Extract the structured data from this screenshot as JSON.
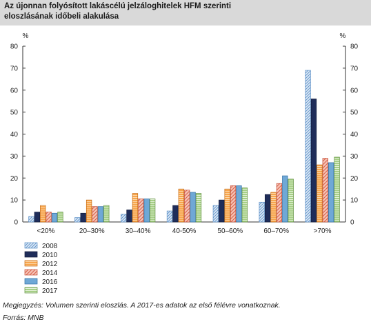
{
  "title": "Az újonnan folyósított lakáscélú jelzáloghitelek HFM szerinti eloszlásának időbeli alakulása",
  "notes": {
    "note": "Megjegyzés: Volumen szerinti eloszlás. A 2017-es adatok az első félévre vonatkoznak.",
    "source": "Forrás: MNB"
  },
  "chart_data": {
    "type": "bar",
    "title": "Az újonnan folyósított lakáscélú jelzáloghitelek HFM szerinti eloszlásának időbeli alakulása",
    "xlabel": "",
    "ylabel": "%",
    "ylabel_right": "%",
    "ylim": [
      0,
      80
    ],
    "yticks": [
      0,
      10,
      20,
      30,
      40,
      50,
      60,
      70,
      80
    ],
    "grid": false,
    "legend_position": "bottom-left",
    "categories": [
      "<20%",
      "20–30%",
      "30–40%",
      "40-50%",
      "50–60%",
      "60–70%",
      ">70%"
    ],
    "series": [
      {
        "name": "2008",
        "color": "#c6dbef",
        "pattern": "hatch-blue",
        "values": [
          2.5,
          2,
          3.5,
          5,
          7.5,
          9,
          69
        ]
      },
      {
        "name": "2010",
        "color": "#1f2d5a",
        "pattern": "solid",
        "values": [
          4.5,
          4,
          5.5,
          7.5,
          10,
          12.5,
          56
        ]
      },
      {
        "name": "2012",
        "color": "#f5a14a",
        "pattern": "stripe-orange",
        "values": [
          7.5,
          10,
          13,
          15,
          15,
          13.5,
          26
        ]
      },
      {
        "name": "2014",
        "color": "#f4b6a6",
        "pattern": "hatch-red",
        "values": [
          4.5,
          7,
          10.5,
          14.5,
          16.5,
          17.5,
          29
        ]
      },
      {
        "name": "2016",
        "color": "#6fa8d6",
        "pattern": "solid-blue",
        "values": [
          4,
          7,
          10.5,
          13.5,
          16.5,
          21,
          27
        ]
      },
      {
        "name": "2017",
        "color": "#a9d08e",
        "pattern": "stripe-green",
        "values": [
          4.5,
          7.5,
          10.5,
          13,
          15.5,
          19.5,
          29.5
        ]
      }
    ]
  }
}
